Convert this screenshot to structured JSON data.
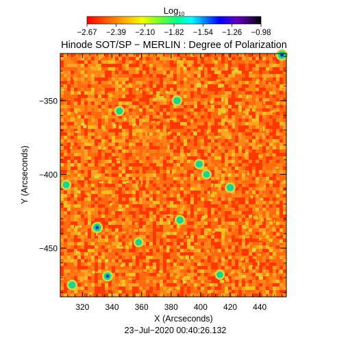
{
  "colorbar": {
    "title_base": "Log",
    "title_sub": "10",
    "range": [
      -2.67,
      -0.98
    ],
    "tick_labels": [
      "−2.67",
      "−2.39",
      "−2.10",
      "−1.82",
      "−1.54",
      "−1.26",
      "−0.98"
    ]
  },
  "chart_data": {
    "type": "heatmap",
    "title": "Hinode SOT/SP − MERLIN : Degree of Polarization",
    "xlabel": "X (Arcseconds)",
    "ylabel": "Y (Arcseconds)",
    "xlim": [
      305,
      458
    ],
    "ylim": [
      -483,
      -318
    ],
    "xticks": [
      320,
      340,
      360,
      380,
      400,
      420,
      440
    ],
    "yticks": [
      -350,
      -400,
      -450
    ],
    "x_tick_labels": [
      "320",
      "340",
      "360",
      "380",
      "400",
      "420",
      "440"
    ],
    "y_tick_labels": [
      "−350",
      "−400",
      "−450"
    ],
    "color_scale": "log10",
    "value_range": [
      -2.67,
      -0.98
    ],
    "typical_value": -2.45,
    "colors": {
      "background_low": "#ff3800",
      "background_mid": "#ff6a10",
      "highlight": "#f2c020",
      "strong": "#22d090",
      "peak": "#1840c0"
    },
    "notable_patches": [
      {
        "x": 345,
        "y": -357,
        "value": -1.6
      },
      {
        "x": 384,
        "y": -350,
        "value": -1.5
      },
      {
        "x": 399,
        "y": -393,
        "value": -1.55
      },
      {
        "x": 404,
        "y": -400,
        "value": -1.65
      },
      {
        "x": 420,
        "y": -409,
        "value": -1.5
      },
      {
        "x": 309,
        "y": -407,
        "value": -1.6
      },
      {
        "x": 386,
        "y": -431,
        "value": -1.55
      },
      {
        "x": 330,
        "y": -436,
        "value": -1.3
      },
      {
        "x": 313,
        "y": -475,
        "value": -1.5
      },
      {
        "x": 337,
        "y": -469,
        "value": -1.45
      },
      {
        "x": 358,
        "y": -446,
        "value": -1.7
      },
      {
        "x": 413,
        "y": -468,
        "value": -1.7
      },
      {
        "x": 455,
        "y": -319,
        "value": -1.2
      }
    ]
  },
  "footer": {
    "timestamp": "23−Jul−2020 00:40:26.132"
  }
}
